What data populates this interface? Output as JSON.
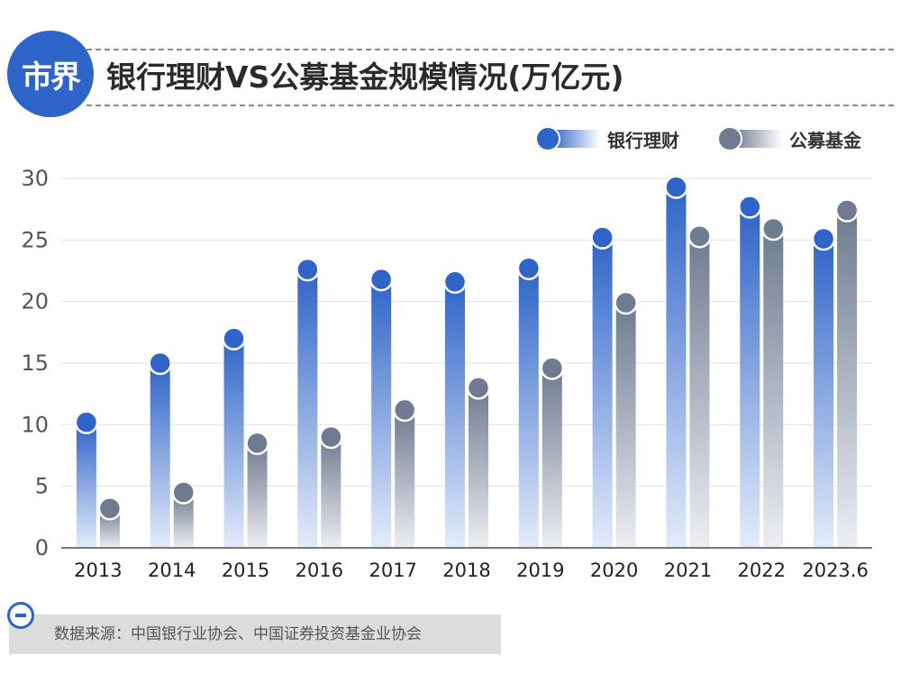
{
  "header": {
    "logo_text": "市界",
    "title": "银行理财VS公募基金规模情况(万亿元)"
  },
  "legend": [
    {
      "label": "银行理财",
      "color": "#2f64c8"
    },
    {
      "label": "公募基金",
      "color": "#6f7b90"
    }
  ],
  "chart_data": {
    "type": "bar",
    "categories": [
      "2013",
      "2014",
      "2015",
      "2016",
      "2017",
      "2018",
      "2019",
      "2020",
      "2021",
      "2022",
      "2023.6"
    ],
    "series": [
      {
        "name": "银行理财",
        "values": [
          10.2,
          15.0,
          17.0,
          22.6,
          21.8,
          21.6,
          22.7,
          25.2,
          29.3,
          27.7,
          25.1
        ],
        "color": "#2f64c8"
      },
      {
        "name": "公募基金",
        "values": [
          3.2,
          4.5,
          8.5,
          9.0,
          11.2,
          13.0,
          14.6,
          19.9,
          25.3,
          25.9,
          27.4
        ],
        "color": "#6f7b90"
      }
    ],
    "title": "银行理财VS公募基金规模情况(万亿元)",
    "yticks": [
      0,
      5,
      10,
      15,
      20,
      25,
      30
    ],
    "ylim": [
      0,
      30
    ],
    "grid": true,
    "legend_position": "top-right"
  },
  "source": {
    "text": "数据来源：中国银行业协会、中国证券投资基金业协会"
  }
}
